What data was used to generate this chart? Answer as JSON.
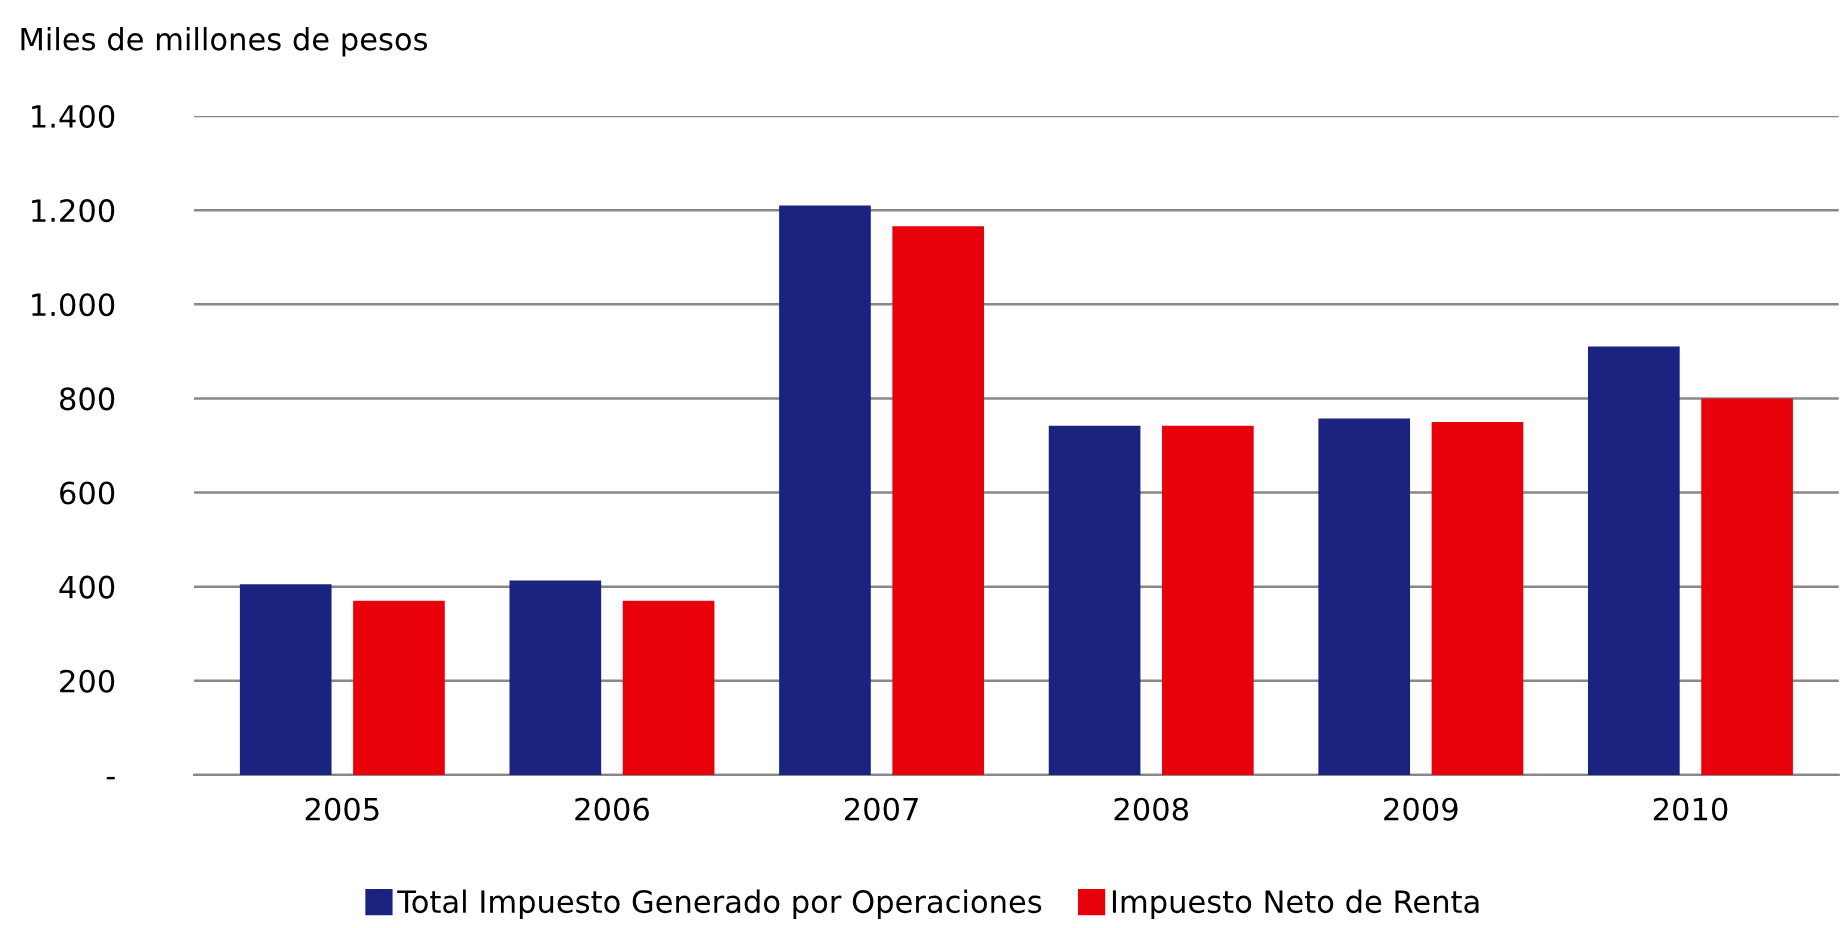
{
  "chart_data": {
    "type": "bar",
    "ylabel": "Miles de millones de pesos",
    "categories": [
      "2005",
      "2006",
      "2007",
      "2008",
      "2009",
      "2010"
    ],
    "series": [
      {
        "name": "Total Impuesto Generado por Operaciones",
        "color": "#1b2381",
        "values": [
          405,
          413,
          1210,
          742,
          757,
          910
        ]
      },
      {
        "name": "Impuesto Neto de Renta",
        "color": "#e8000b",
        "values": [
          370,
          370,
          1166,
          742,
          750,
          800
        ]
      }
    ],
    "ylim": [
      0,
      1400
    ],
    "yticks": [
      {
        "value": 0,
        "label": "-"
      },
      {
        "value": 200,
        "label": "200"
      },
      {
        "value": 400,
        "label": "400"
      },
      {
        "value": 600,
        "label": "600"
      },
      {
        "value": 800,
        "label": "800"
      },
      {
        "value": 1000,
        "label": "1.000"
      },
      {
        "value": 1200,
        "label": "1.200"
      },
      {
        "value": 1400,
        "label": "1.400"
      }
    ],
    "grid": "y",
    "legend": "bottom"
  }
}
